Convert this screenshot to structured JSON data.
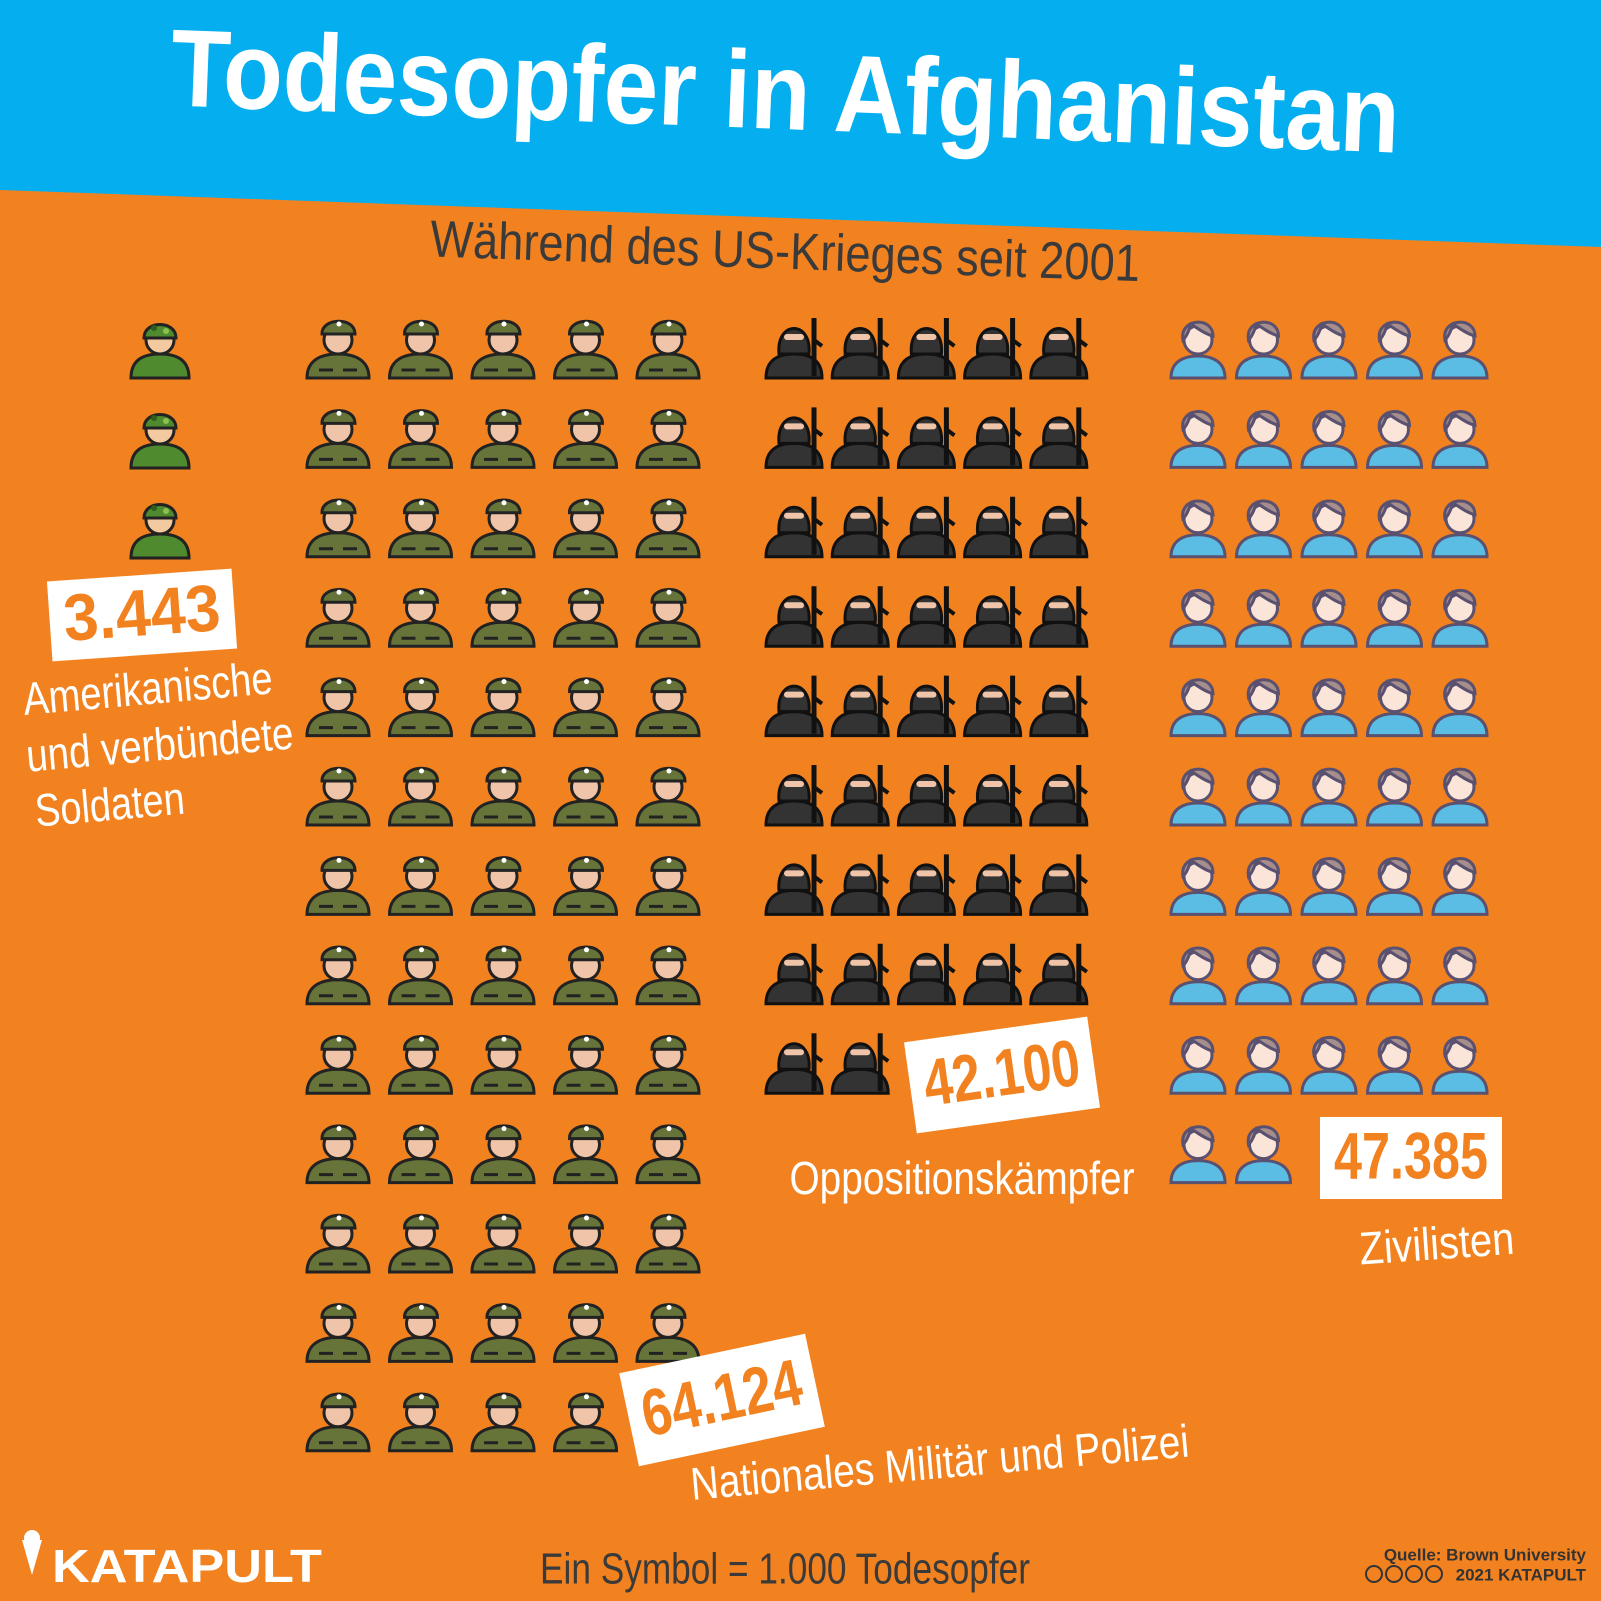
{
  "chart_data": {
    "type": "pictogram",
    "title": "Todesopfer in Afghanistan",
    "subtitle": "Während des US-Krieges seit 2001",
    "unit": 1000,
    "unit_label": "Ein Symbol = 1.000 Todesopfer",
    "categories": [
      [
        "Amerikanische",
        "und verbündete",
        "Soldaten"
      ],
      [
        "Nationales Militär und Polizei"
      ],
      [
        "Oppositionskämpfer"
      ],
      [
        "Zivilisten"
      ]
    ],
    "values": [
      3443,
      64124,
      42100,
      47385
    ],
    "value_labels": [
      "3.443",
      "64.124",
      "42.100",
      "47.385"
    ],
    "colors": [
      "#4f8a2f",
      "#66743a",
      "#333333",
      "#5bbde4"
    ],
    "source": "Quelle: Brown University",
    "copyright": "2021 KATAPULT",
    "brand": "KATAPULT"
  }
}
